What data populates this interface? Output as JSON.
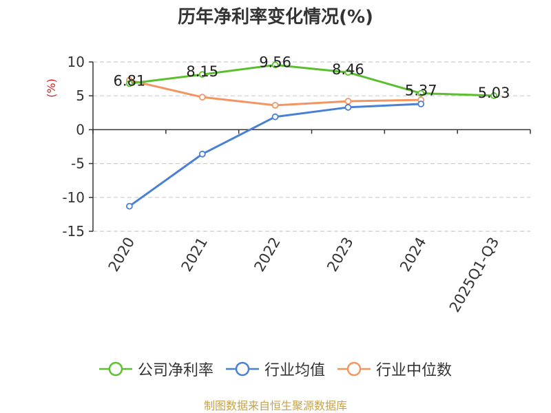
{
  "chart_data": {
    "type": "line",
    "title": "历年净利率变化情况(%)",
    "ylabel": "(%)",
    "xlabel": "",
    "categories": [
      "2020",
      "2021",
      "2022",
      "2023",
      "2024",
      "2025Q1-Q3"
    ],
    "ylim": [
      -15,
      10
    ],
    "yticks": [
      "10",
      "5",
      "0",
      "-5",
      "-10",
      "-15"
    ],
    "grid": true,
    "legend_position": "bottom",
    "series": [
      {
        "name": "公司净利率",
        "color": "#5abf2f",
        "values": [
          6.81,
          8.15,
          9.56,
          8.46,
          5.37,
          5.03
        ],
        "labels": [
          "6.81",
          "8.15",
          "9.56",
          "8.46",
          "5.37",
          "5.03"
        ]
      },
      {
        "name": "行业均值",
        "color": "#4a7fd6",
        "values": [
          -11.3,
          -3.6,
          1.9,
          3.3,
          3.8,
          null
        ],
        "labels": []
      },
      {
        "name": "行业中位数",
        "color": "#f29560",
        "values": [
          7.3,
          4.8,
          3.6,
          4.2,
          4.4,
          null
        ],
        "labels": []
      }
    ]
  },
  "source_note": "制图数据来自恒生聚源数据库"
}
